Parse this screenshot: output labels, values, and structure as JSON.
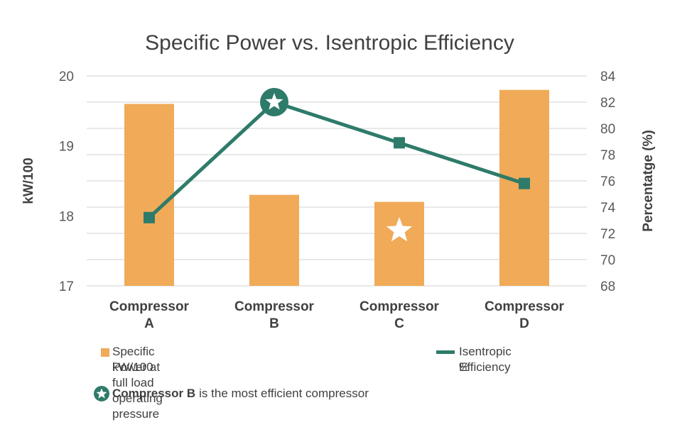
{
  "colors": {
    "bar": "#F0AA58",
    "line": "#2E7B6A",
    "grid": "#D9D9D9",
    "star": "#ffffff"
  },
  "chart_data": {
    "type": "bar",
    "title": "Specific Power vs. Isentropic Efficiency",
    "categories": [
      [
        "Compressor",
        "A"
      ],
      [
        "Compressor",
        "B"
      ],
      [
        "Compressor",
        "C"
      ],
      [
        "Compressor",
        "D"
      ]
    ],
    "series": [
      {
        "name": "Specific Power at full load operating pressure kW/100",
        "type": "bar",
        "axis": "left",
        "values": [
          19.6,
          18.3,
          18.2,
          19.8
        ]
      },
      {
        "name": "Isentropic Efficiency %",
        "type": "line",
        "axis": "right",
        "values": [
          73.2,
          82.0,
          78.9,
          75.8
        ]
      }
    ],
    "y_left": {
      "label": "kW/100",
      "range": [
        17,
        20
      ],
      "ticks": [
        "17",
        "18",
        "19",
        "20"
      ]
    },
    "y_right": {
      "label": "Percentatge (%)",
      "range": [
        68,
        84
      ],
      "ticks": [
        "68",
        "70",
        "72",
        "74",
        "76",
        "78",
        "80",
        "82",
        "84"
      ]
    },
    "grid": true,
    "legend_position": "bottom",
    "highlights": [
      {
        "category_index": 1,
        "series": "line",
        "marker": "star"
      },
      {
        "category_index": 2,
        "series": "bar",
        "marker": "star"
      }
    ]
  },
  "legend": {
    "bar_line1": "Specific Power at full load operating pressure",
    "bar_line2": "kW/100",
    "line_line1": "Isentropic Efficiency",
    "line_line2": "%"
  },
  "note": {
    "bold": "Compressor B",
    "rest": "is the most efficient compressor"
  }
}
